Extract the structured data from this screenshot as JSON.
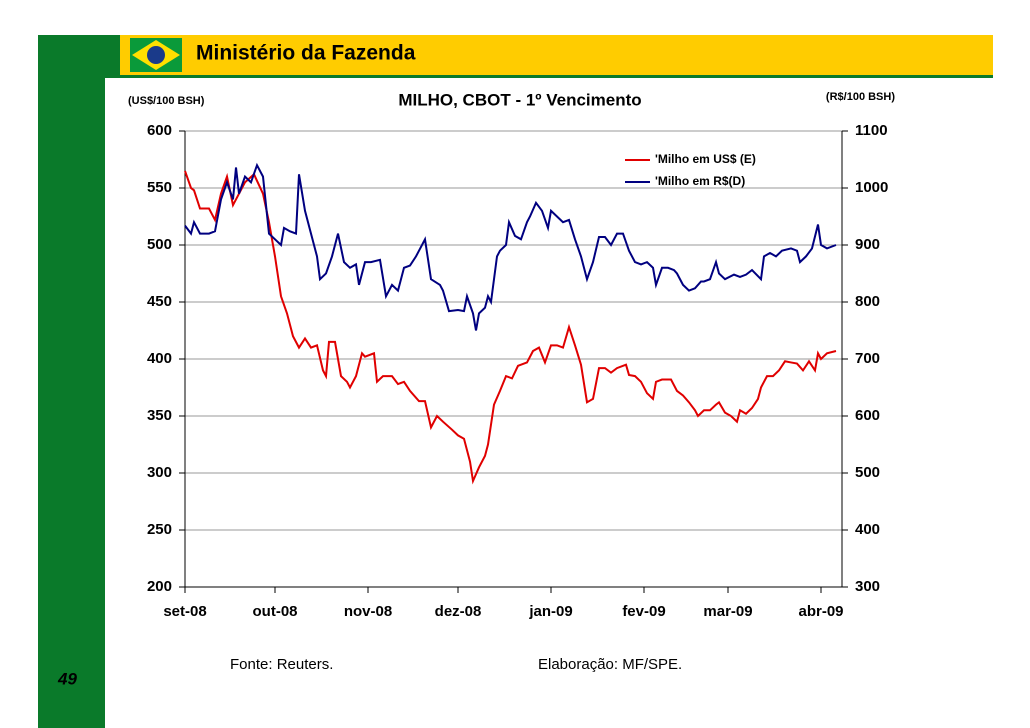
{
  "header": {
    "title": "Ministério da Fazenda"
  },
  "chart_data": {
    "type": "line",
    "title": "MILHO, CBOT - 1º Vencimento",
    "ylabel": "(US$/100 BSH)",
    "y2label": "(R$/100 BSH)",
    "xlim": [
      0,
      219
    ],
    "xticks": [
      {
        "value": 0,
        "label": "set-08"
      },
      {
        "value": 30,
        "label": "out-08"
      },
      {
        "value": 61,
        "label": "nov-08"
      },
      {
        "value": 91,
        "label": "dez-08"
      },
      {
        "value": 122,
        "label": "jan-09"
      },
      {
        "value": 153,
        "label": "fev-09"
      },
      {
        "value": 181,
        "label": "mar-09"
      },
      {
        "value": 212,
        "label": "abr-09"
      }
    ],
    "ylim": [
      200,
      600
    ],
    "yticks": [
      200,
      250,
      300,
      350,
      400,
      450,
      500,
      550,
      600
    ],
    "y2lim": [
      300,
      1100
    ],
    "y2ticks": [
      300,
      400,
      500,
      600,
      700,
      800,
      900,
      1000,
      1100
    ],
    "grid": true,
    "legend": "upper right",
    "series": [
      {
        "name": "'Milho em US$ (E)",
        "color": "#e00000",
        "x": [
          0,
          2,
          3,
          5,
          8,
          10,
          12,
          14,
          16,
          18,
          20,
          23,
          26,
          28,
          30,
          32,
          34,
          36,
          38,
          40,
          42,
          44,
          46,
          47,
          48,
          50,
          52,
          54,
          55,
          57,
          59,
          60,
          63,
          64,
          66,
          69,
          71,
          73,
          75,
          78,
          80,
          82,
          84,
          86,
          89,
          91,
          93,
          95,
          96,
          98,
          100,
          101,
          103,
          105,
          107,
          109,
          111,
          112,
          114,
          116,
          118,
          120,
          122,
          124,
          126,
          128,
          130,
          132,
          134,
          136,
          138,
          140,
          142,
          144,
          147,
          148,
          150,
          152,
          154,
          156,
          157,
          159,
          162,
          164,
          166,
          168,
          170,
          171,
          173,
          175,
          177,
          178,
          180,
          182,
          184,
          185,
          187,
          189,
          191,
          192,
          194,
          196,
          198,
          200,
          202,
          204,
          206,
          208,
          210,
          211,
          212,
          214,
          217
        ],
        "values": [
          565,
          550,
          548,
          532,
          532,
          522,
          545,
          560,
          535,
          545,
          555,
          562,
          545,
          520,
          490,
          455,
          440,
          420,
          410,
          418,
          410,
          412,
          390,
          385,
          415,
          415,
          385,
          380,
          375,
          385,
          405,
          402,
          405,
          380,
          385,
          385,
          378,
          380,
          372,
          363,
          363,
          340,
          350,
          345,
          338,
          333,
          330,
          310,
          293,
          305,
          315,
          325,
          360,
          372,
          385,
          383,
          394,
          395,
          397,
          407,
          410,
          397,
          412,
          412,
          410,
          428,
          412,
          395,
          362,
          365,
          392,
          392,
          388,
          392,
          395,
          386,
          385,
          380,
          370,
          365,
          380,
          382,
          382,
          372,
          368,
          362,
          355,
          350,
          355,
          355,
          360,
          362,
          353,
          350,
          345,
          355,
          352,
          357,
          365,
          375,
          385,
          385,
          390,
          398,
          397,
          396,
          390,
          398,
          390,
          405,
          400,
          405,
          407
        ]
      },
      {
        "name": "'Milho em R$(D)",
        "color": "#000080",
        "axis": "y2",
        "x": [
          0,
          2,
          3,
          5,
          8,
          10,
          12,
          14,
          16,
          17,
          18,
          20,
          22,
          24,
          26,
          28,
          30,
          32,
          33,
          35,
          37,
          38,
          40,
          42,
          44,
          45,
          47,
          49,
          51,
          53,
          55,
          57,
          58,
          60,
          62,
          65,
          67,
          69,
          71,
          73,
          75,
          77,
          78,
          80,
          82,
          85,
          86,
          88,
          91,
          93,
          94,
          96,
          97,
          98,
          100,
          101,
          102,
          104,
          105,
          107,
          108,
          110,
          112,
          114,
          115,
          117,
          119,
          121,
          122,
          124,
          126,
          128,
          130,
          132,
          134,
          136,
          138,
          140,
          142,
          144,
          146,
          148,
          150,
          152,
          154,
          156,
          157,
          159,
          161,
          163,
          164,
          166,
          168,
          170,
          172,
          173,
          175,
          177,
          178,
          180,
          183,
          185,
          187,
          189,
          192,
          193,
          195,
          197,
          199,
          202,
          204,
          205,
          207,
          209,
          211,
          212,
          214,
          217
        ],
        "values": [
          934,
          920,
          940,
          920,
          920,
          924,
          980,
          1010,
          980,
          1036,
          990,
          1020,
          1010,
          1040,
          1020,
          920,
          910,
          900,
          930,
          924,
          920,
          1024,
          960,
          920,
          880,
          840,
          850,
          880,
          920,
          870,
          860,
          866,
          830,
          870,
          870,
          874,
          810,
          830,
          820,
          860,
          864,
          880,
          890,
          910,
          840,
          830,
          820,
          784,
          786,
          784,
          810,
          780,
          750,
          780,
          790,
          810,
          800,
          880,
          890,
          900,
          940,
          916,
          910,
          940,
          950,
          974,
          960,
          930,
          960,
          950,
          940,
          944,
          910,
          880,
          840,
          870,
          914,
          914,
          900,
          920,
          920,
          890,
          870,
          866,
          870,
          860,
          830,
          860,
          860,
          856,
          850,
          830,
          820,
          824,
          836,
          836,
          840,
          870,
          850,
          840,
          848,
          844,
          848,
          856,
          840,
          880,
          886,
          880,
          890,
          894,
          890,
          870,
          880,
          894,
          936,
          900,
          894,
          900
        ]
      }
    ]
  },
  "footer": {
    "source": "Fonte: Reuters.",
    "credit": "Elaboração: MF/SPE.",
    "page": "49"
  }
}
